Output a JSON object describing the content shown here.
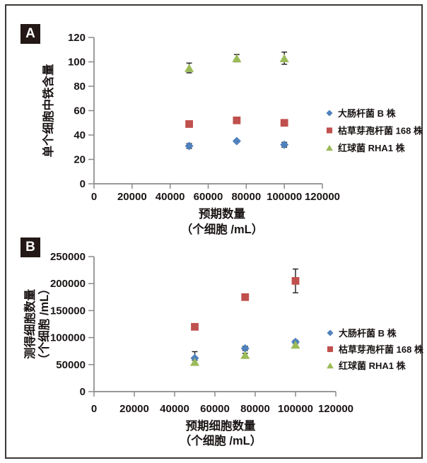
{
  "figure": {
    "panel_a_label": "A",
    "panel_b_label": "B"
  },
  "styles": {
    "background": "#ffffff",
    "border_color": "#3c3835",
    "badge_bg": "#231815",
    "badge_fg": "#ffffff",
    "axis_color": "#8a8a8a",
    "text_color": "#1a1414",
    "error_bar_color": "#1f1f1f",
    "series_blue": "#4F81BD",
    "series_red": "#C0504D",
    "series_green": "#9BBB59"
  },
  "chart_data": [
    {
      "id": "A",
      "type": "scatter",
      "title": "",
      "xlabel_lines": [
        "预期数量",
        "（个细胞 /mL）"
      ],
      "ylabel_lines": [
        "单个细胞中铁含量"
      ],
      "xlim": [
        0,
        120000
      ],
      "ylim": [
        0,
        120
      ],
      "xticks": [
        0,
        20000,
        40000,
        60000,
        80000,
        100000,
        120000
      ],
      "yticks": [
        0,
        20,
        40,
        60,
        80,
        100,
        120
      ],
      "grid": false,
      "legend_position": "right",
      "x": [
        50000,
        75000,
        100000
      ],
      "series": [
        {
          "name": "大肠杆菌 B 株",
          "marker": "diamond",
          "color": "#4F81BD",
          "values": [
            31,
            35,
            32
          ],
          "errors": [
            2,
            1,
            2
          ]
        },
        {
          "name": "枯草芽孢杆菌 168 株",
          "marker": "square",
          "color": "#C0504D",
          "values": [
            49,
            52,
            50
          ],
          "errors": [
            1,
            1,
            1
          ]
        },
        {
          "name": "红球菌 RHA1 株",
          "marker": "triangle",
          "color": "#9BBB59",
          "values": [
            95,
            103,
            103
          ],
          "errors": [
            4,
            3,
            5
          ]
        }
      ]
    },
    {
      "id": "B",
      "type": "scatter",
      "title": "",
      "xlabel_lines": [
        "预期细胞数量",
        "（个细胞 /mL）"
      ],
      "ylabel_lines": [
        "测得细胞数量",
        "（个细胞 /mL）"
      ],
      "xlim": [
        0,
        120000
      ],
      "ylim": [
        0,
        250000
      ],
      "xticks": [
        0,
        20000,
        40000,
        60000,
        80000,
        100000,
        120000
      ],
      "yticks": [
        0,
        50000,
        100000,
        150000,
        200000,
        250000
      ],
      "grid": false,
      "legend_position": "right",
      "x": [
        50000,
        75000,
        100000
      ],
      "series": [
        {
          "name": "大肠杆菌 B 株",
          "marker": "diamond",
          "color": "#4F81BD",
          "values": [
            62000,
            80000,
            92000
          ],
          "errors": [
            12000,
            4000,
            3000
          ]
        },
        {
          "name": "枯草芽孢杆菌 168 株",
          "marker": "square",
          "color": "#C0504D",
          "values": [
            120000,
            175000,
            205000
          ],
          "errors": [
            4000,
            4000,
            22000
          ]
        },
        {
          "name": "红球菌 RHA1 株",
          "marker": "triangle",
          "color": "#9BBB59",
          "values": [
            55000,
            68000,
            87000
          ],
          "errors": [
            3000,
            3000,
            3000
          ]
        }
      ]
    }
  ]
}
